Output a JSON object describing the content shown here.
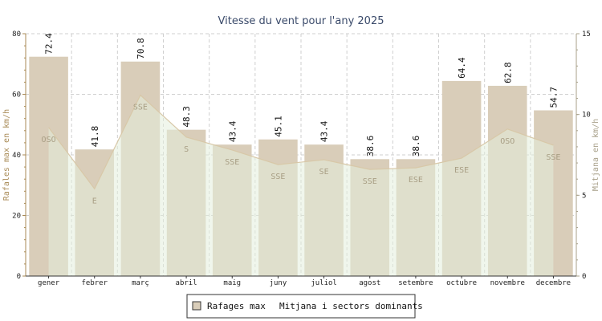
{
  "chart_data": {
    "type": "bar",
    "title": "Vitesse du vent pour l'any 2025",
    "ylabel_left": "Rafales max en km/h",
    "ylabel_right": "Mitjana en km/h",
    "ylim_left": [
      0,
      80
    ],
    "ylim_right": [
      0,
      15
    ],
    "yticks_left": [
      "0",
      "20",
      "40",
      "60",
      "80"
    ],
    "yticks_right": [
      "0",
      "5",
      "10",
      "15"
    ],
    "grid": true,
    "legend_position": "bottom",
    "categories": [
      "gener",
      "febrer",
      "març",
      "abril",
      "maig",
      "juny",
      "juliol",
      "agost",
      "setembre",
      "octubre",
      "novembre",
      "decembre"
    ],
    "series": [
      {
        "name": "Rafages max",
        "type": "bar",
        "axis": "left",
        "values": [
          72.4,
          41.8,
          70.8,
          48.3,
          43.4,
          45.1,
          43.4,
          38.6,
          38.6,
          64.4,
          62.8,
          54.7
        ],
        "labels": [
          "72.4",
          "41.8",
          "70.8",
          "48.3",
          "43.4",
          "45.1",
          "43.4",
          "38.6",
          "38.6",
          "64.4",
          "62.8",
          "54.7"
        ],
        "color": "#d9cdb9"
      },
      {
        "name": "Mitjana i sectors dominants",
        "type": "area",
        "axis": "right",
        "values": [
          9.2,
          5.4,
          11.2,
          8.6,
          7.8,
          6.9,
          7.2,
          6.6,
          6.7,
          7.3,
          9.1,
          8.1
        ],
        "sectors": [
          "OSO",
          "E",
          "SSE",
          "S",
          "SSE",
          "SSE",
          "SE",
          "SSE",
          "ESE",
          "ESE",
          "OSO",
          "SSE"
        ],
        "color": "#e4efdc"
      }
    ]
  }
}
